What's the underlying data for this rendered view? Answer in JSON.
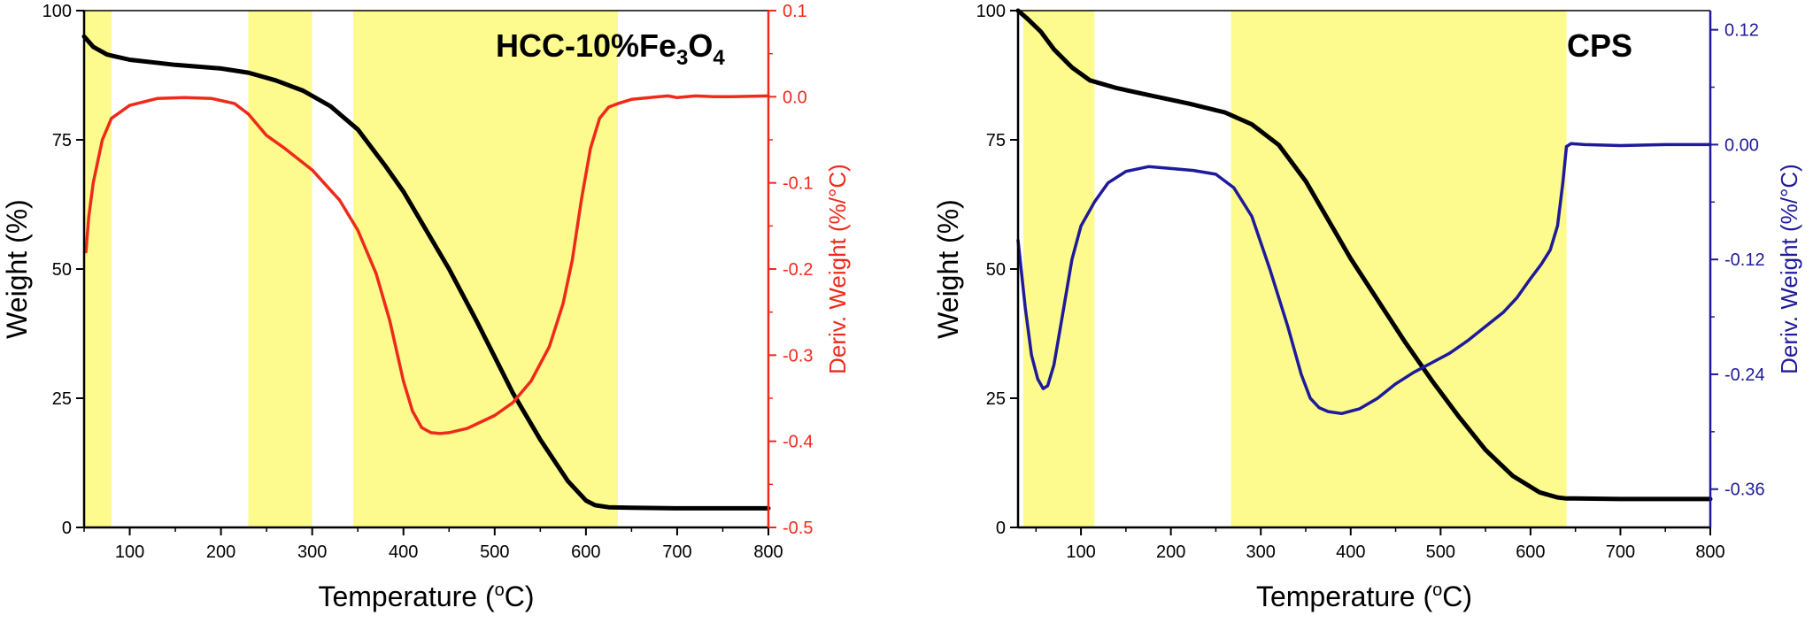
{
  "chart_data": [
    {
      "type": "line",
      "title": "HCC-10%Fe",
      "title_sub1": "3",
      "title_mid": "O",
      "title_sub2": "4",
      "xlabel": "Temperature",
      "xlabel_unit_sup": "o",
      "xlabel_unit_tail": "C)",
      "xlabel_open": " (",
      "ylabel": "Weight (%)",
      "y2label": "Deriv. Weight (%/°C)",
      "xlim": [
        50,
        800
      ],
      "ylim": [
        0,
        100
      ],
      "y2lim": [
        -0.5,
        0.1
      ],
      "xticks": [
        100,
        200,
        300,
        400,
        500,
        600,
        700,
        800
      ],
      "yticks": [
        0,
        25,
        50,
        75,
        100
      ],
      "y2ticks": [
        0.1,
        0.0,
        -0.1,
        -0.2,
        -0.3,
        -0.4,
        -0.5
      ],
      "y2tick_labels": [
        "0.1",
        "0.0",
        "-0.1",
        "-0.2",
        "-0.3",
        "-0.4",
        "-0.5"
      ],
      "y2_color": "#ee2a1a",
      "highlight_color": "#fdfa8e",
      "highlight_regions": [
        [
          50,
          80
        ],
        [
          230,
          300
        ],
        [
          345,
          635
        ]
      ],
      "series": [
        {
          "name": "Weight",
          "axis": "left",
          "color": "#000000",
          "x": [
            50,
            60,
            75,
            100,
            150,
            200,
            230,
            260,
            290,
            320,
            350,
            380,
            400,
            420,
            450,
            480,
            500,
            520,
            550,
            580,
            600,
            610,
            625,
            650,
            700,
            750,
            800
          ],
          "y": [
            95,
            93,
            91.5,
            90.5,
            89.5,
            88.8,
            88,
            86.5,
            84.5,
            81.5,
            77,
            70,
            65,
            59,
            50,
            40,
            33,
            26,
            17,
            9,
            5.2,
            4.3,
            3.9,
            3.8,
            3.7,
            3.7,
            3.7
          ]
        },
        {
          "name": "Deriv. Weight",
          "axis": "right",
          "color": "#ee2a1a",
          "x": [
            52,
            55,
            60,
            70,
            80,
            100,
            130,
            160,
            190,
            215,
            230,
            250,
            270,
            300,
            330,
            350,
            370,
            385,
            400,
            410,
            420,
            430,
            440,
            450,
            470,
            500,
            520,
            540,
            560,
            575,
            585,
            595,
            605,
            615,
            625,
            635,
            650,
            680,
            690,
            700,
            720,
            740,
            760,
            800
          ],
          "y": [
            -0.18,
            -0.14,
            -0.1,
            -0.05,
            -0.025,
            -0.01,
            -0.002,
            -0.001,
            -0.002,
            -0.008,
            -0.02,
            -0.045,
            -0.06,
            -0.085,
            -0.12,
            -0.155,
            -0.205,
            -0.26,
            -0.33,
            -0.365,
            -0.384,
            -0.39,
            -0.391,
            -0.39,
            -0.385,
            -0.37,
            -0.355,
            -0.33,
            -0.29,
            -0.24,
            -0.19,
            -0.12,
            -0.06,
            -0.025,
            -0.012,
            -0.008,
            -0.003,
            0.0,
            0.001,
            -0.001,
            0.001,
            0.0,
            0.0,
            0.001
          ]
        }
      ]
    },
    {
      "type": "line",
      "title": "CPS",
      "xlabel": "Temperature",
      "xlabel_unit_sup": "o",
      "xlabel_unit_tail": "C)",
      "xlabel_open": " (",
      "ylabel": "Weight (%)",
      "y2label": "Deriv. Weight (%/°C)",
      "xlim": [
        30,
        800
      ],
      "ylim": [
        0,
        100
      ],
      "y2lim": [
        -0.4,
        0.14
      ],
      "xticks": [
        100,
        200,
        300,
        400,
        500,
        600,
        700,
        800
      ],
      "yticks": [
        0,
        25,
        50,
        75,
        100
      ],
      "y2ticks": [
        0.12,
        0.0,
        -0.12,
        -0.24,
        -0.36
      ],
      "y2tick_labels": [
        "0.12",
        "0.00",
        "-0.12",
        "-0.24",
        "-0.36"
      ],
      "y2_color": "#1f1a9a",
      "highlight_color": "#fdfa8e",
      "highlight_regions": [
        [
          36,
          115
        ],
        [
          267,
          640
        ]
      ],
      "series": [
        {
          "name": "Weight",
          "axis": "left",
          "color": "#000000",
          "x": [
            30,
            40,
            55,
            70,
            90,
            110,
            140,
            180,
            220,
            260,
            290,
            320,
            350,
            380,
            400,
            430,
            460,
            490,
            520,
            550,
            580,
            610,
            630,
            640,
            650,
            700,
            750,
            800
          ],
          "y": [
            100,
            98.5,
            96,
            92.5,
            89,
            86.5,
            85,
            83.5,
            82,
            80.3,
            78,
            74,
            67,
            58,
            52,
            44,
            36,
            28.5,
            21.5,
            15,
            10,
            6.8,
            5.8,
            5.6,
            5.6,
            5.5,
            5.5,
            5.5
          ]
        },
        {
          "name": "Deriv. Weight",
          "axis": "right",
          "color": "#1f1a9a",
          "x": [
            30,
            38,
            45,
            52,
            58,
            63,
            70,
            80,
            90,
            100,
            115,
            130,
            150,
            175,
            200,
            225,
            250,
            270,
            290,
            310,
            330,
            345,
            355,
            365,
            375,
            390,
            410,
            430,
            450,
            470,
            490,
            510,
            530,
            550,
            570,
            585,
            600,
            612,
            622,
            630,
            636,
            640,
            645,
            660,
            700,
            750,
            800
          ],
          "y": [
            -0.1,
            -0.17,
            -0.22,
            -0.245,
            -0.255,
            -0.252,
            -0.23,
            -0.175,
            -0.12,
            -0.085,
            -0.06,
            -0.04,
            -0.028,
            -0.023,
            -0.025,
            -0.027,
            -0.031,
            -0.045,
            -0.075,
            -0.13,
            -0.19,
            -0.24,
            -0.265,
            -0.275,
            -0.279,
            -0.281,
            -0.276,
            -0.265,
            -0.25,
            -0.238,
            -0.228,
            -0.218,
            -0.205,
            -0.19,
            -0.175,
            -0.16,
            -0.14,
            -0.125,
            -0.11,
            -0.085,
            -0.04,
            -0.002,
            0.001,
            0.0,
            -0.001,
            0.0,
            0.0
          ]
        }
      ]
    }
  ]
}
